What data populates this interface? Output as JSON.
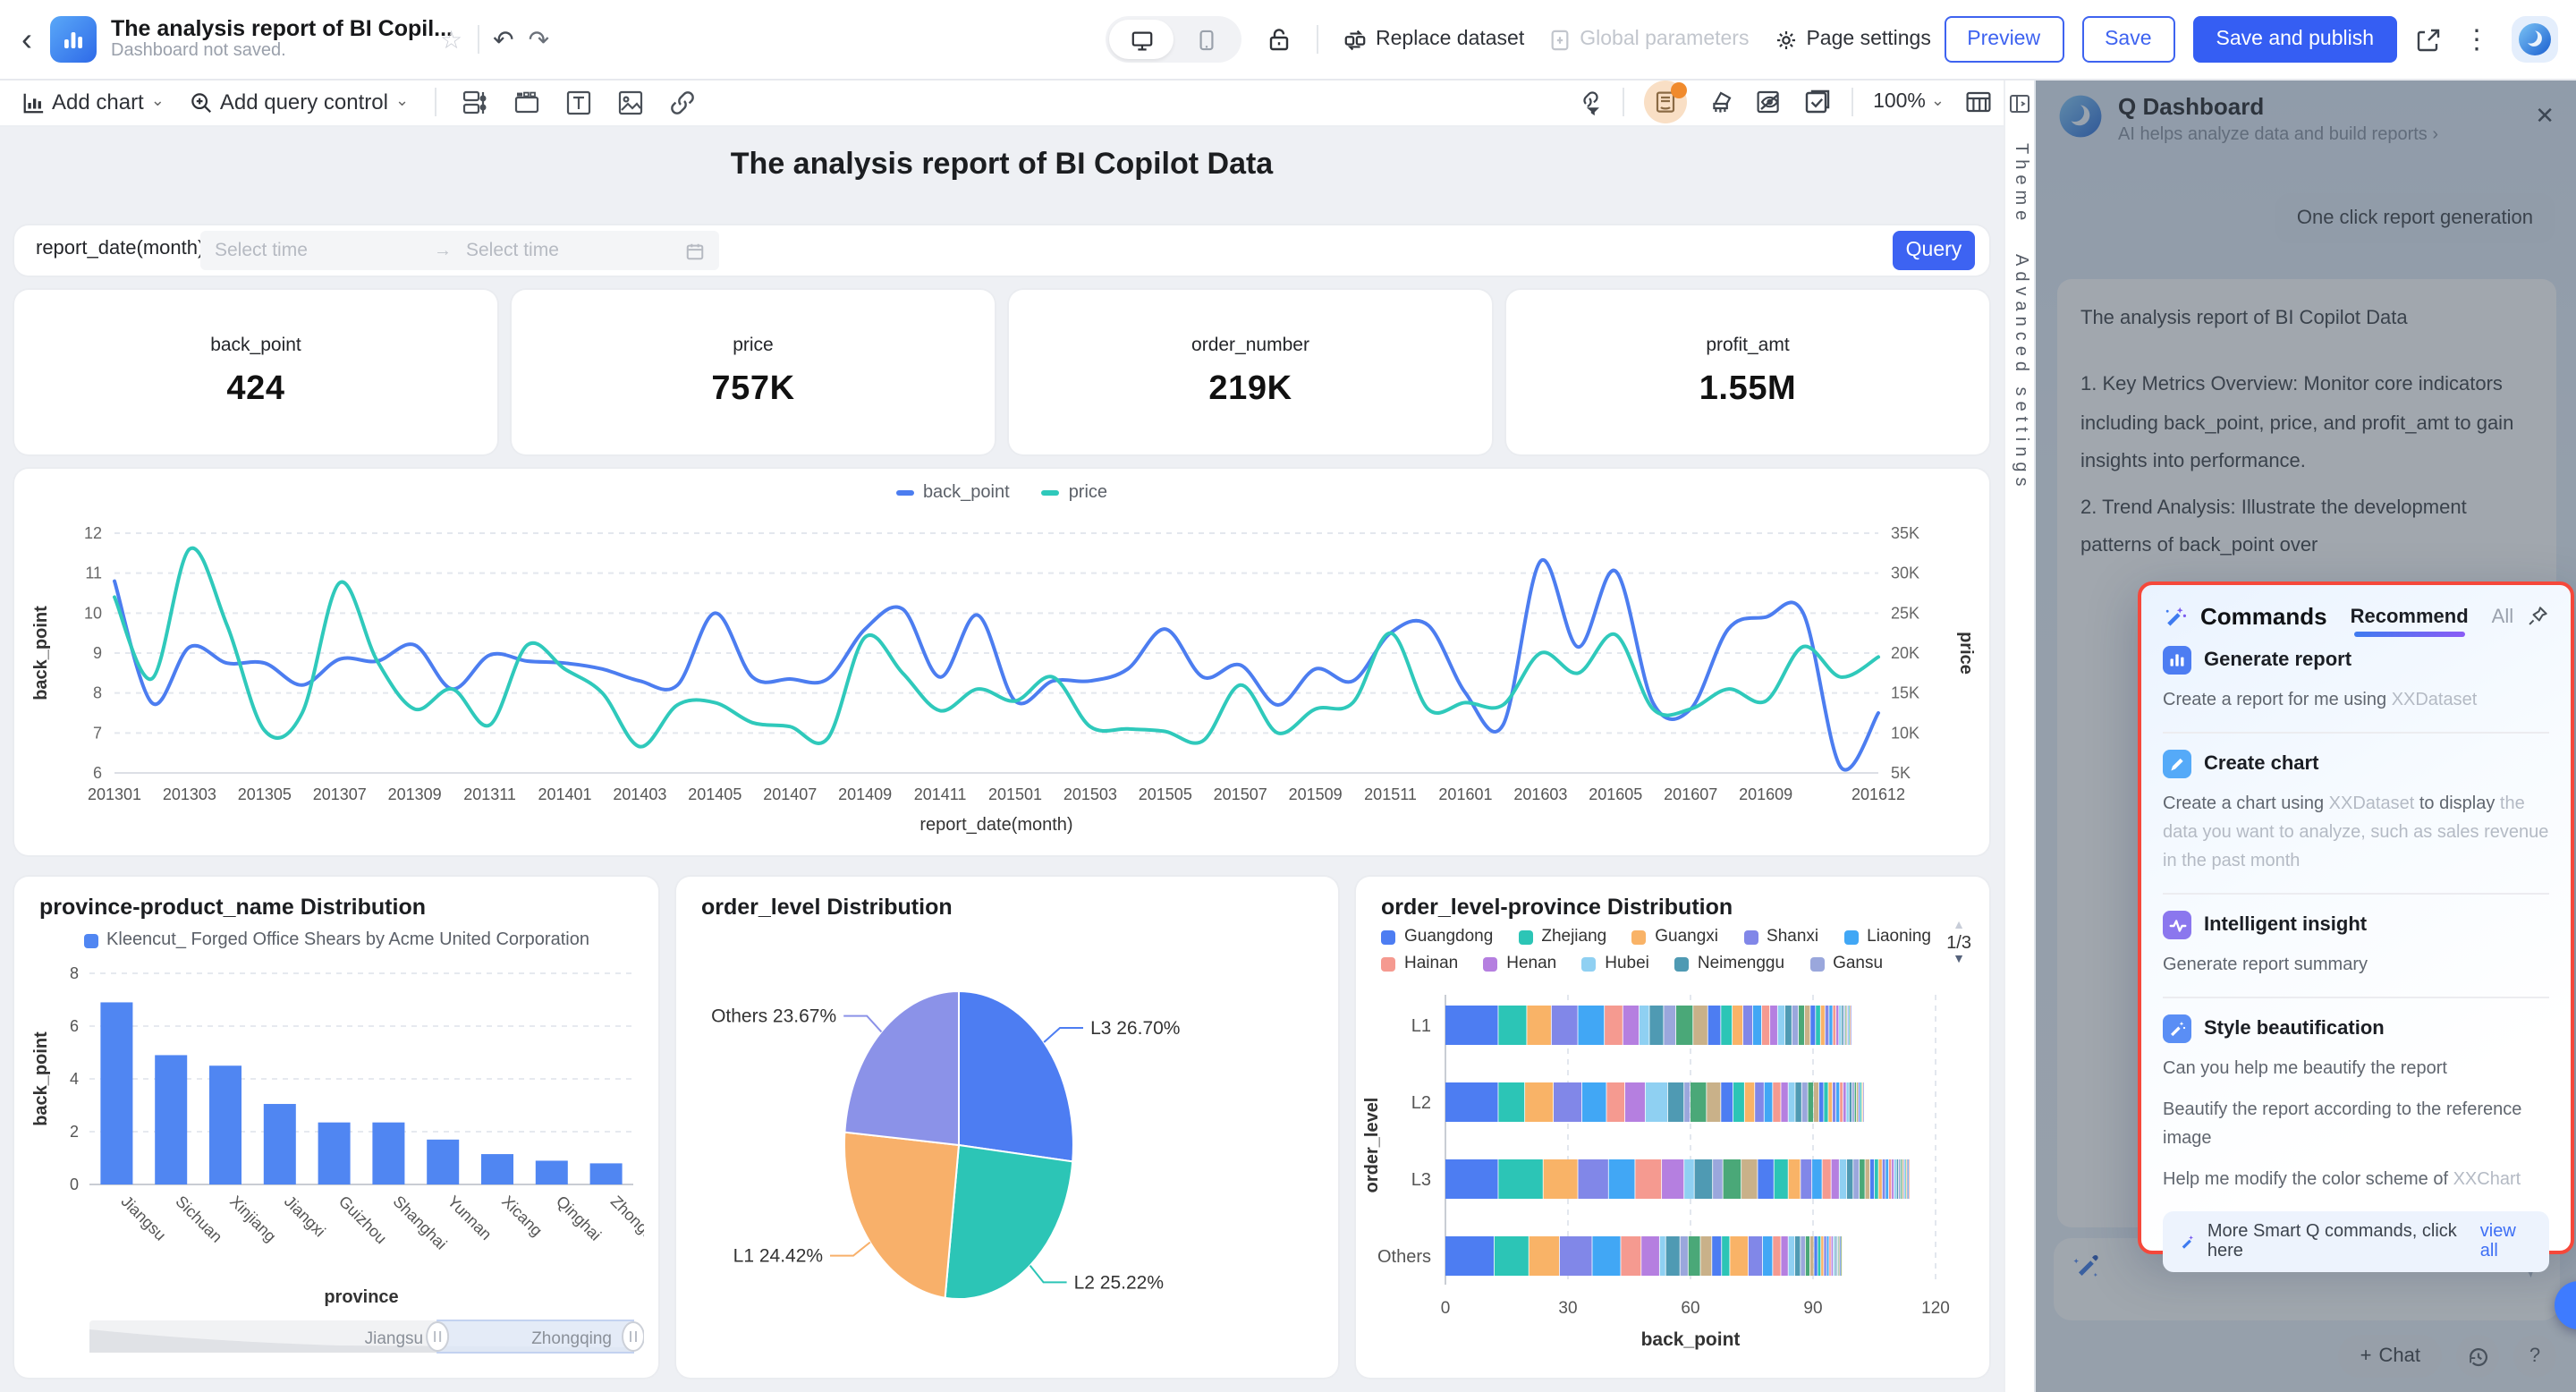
{
  "icons": {
    "back": "‹",
    "star": "☆",
    "undo": "↶",
    "redo": "↷",
    "kebab": "⋮",
    "close": "✕",
    "caret": "⌄",
    "range_arrow": "→",
    "plus": "+",
    "question": "?",
    "tri_up": "▲",
    "tri_down": "▼",
    "chevron_right": "›"
  },
  "top_bar": {
    "doc_title": "The analysis report of BI Copil...",
    "doc_subtitle": "Dashboard not saved.",
    "replace_dataset": "Replace dataset",
    "global_parameters": "Global parameters",
    "page_settings": "Page settings",
    "preview": "Preview",
    "save": "Save",
    "save_and_publish": "Save and publish"
  },
  "toolbar": {
    "add_chart": "Add chart",
    "add_query_control": "Add query control",
    "zoom_level": "100%"
  },
  "side_strip": {
    "theme": "Theme",
    "advanced_settings": "Advanced settings"
  },
  "dashboard": {
    "title": "The analysis report of BI Copilot Data",
    "query": {
      "field_label": "report_date(month)",
      "start_placeholder": "Select time",
      "end_placeholder": "Select time",
      "button": "Query"
    },
    "kpis": [
      {
        "label": "back_point",
        "value": "424"
      },
      {
        "label": "price",
        "value": "757K"
      },
      {
        "label": "order_number",
        "value": "219K"
      },
      {
        "label": "profit_amt",
        "value": "1.55M"
      }
    ]
  },
  "chart_data": [
    {
      "type": "line",
      "xlabel": "report_date(month)",
      "x": [
        "201301",
        "201302",
        "201303",
        "201304",
        "201305",
        "201306",
        "201307",
        "201308",
        "201309",
        "201310",
        "201311",
        "201312",
        "201401",
        "201402",
        "201403",
        "201404",
        "201405",
        "201406",
        "201407",
        "201408",
        "201409",
        "201410",
        "201411",
        "201412",
        "201501",
        "201502",
        "201503",
        "201504",
        "201505",
        "201506",
        "201507",
        "201508",
        "201509",
        "201510",
        "201511",
        "201512",
        "201601",
        "201602",
        "201603",
        "201604",
        "201605",
        "201606",
        "201607",
        "201608",
        "201609",
        "201610",
        "201611",
        "201612"
      ],
      "x_ticks": [
        "201301",
        "201303",
        "201305",
        "201307",
        "201309",
        "201311",
        "201401",
        "201403",
        "201405",
        "201407",
        "201409",
        "201411",
        "201501",
        "201503",
        "201505",
        "201507",
        "201509",
        "201511",
        "201601",
        "201603",
        "201605",
        "201607",
        "201609",
        "201612"
      ],
      "left_axis": {
        "label": "back_point",
        "min": 6,
        "max": 12,
        "ticks": [
          12,
          11,
          10,
          9,
          8,
          7,
          6
        ]
      },
      "right_axis": {
        "label": "price",
        "min": 5,
        "max": 35,
        "tick_labels": [
          "35K",
          "30K",
          "25K",
          "20K",
          "15K",
          "10K",
          "5K"
        ]
      },
      "series": [
        {
          "name": "back_point",
          "axis": "left",
          "color": "#4c7df0",
          "values": [
            10.8,
            7.75,
            9.15,
            8.75,
            8.75,
            8.2,
            8.85,
            8.8,
            9.2,
            8.1,
            8.95,
            8.8,
            8.75,
            8.6,
            8.3,
            8.2,
            10.0,
            8.4,
            8.35,
            8.35,
            9.6,
            10.1,
            8.4,
            9.95,
            7.8,
            8.3,
            8.3,
            8.6,
            9.6,
            8.4,
            8.7,
            7.7,
            8.6,
            8.3,
            9.5,
            9.7,
            8.0,
            7.2,
            11.3,
            9.15,
            11.05,
            7.75,
            7.6,
            9.6,
            9.9,
            10.0,
            6.15,
            7.5
          ]
        },
        {
          "name": "price",
          "axis": "right",
          "color": "#2fc9bb",
          "unit": "K",
          "values": [
            27,
            16.8,
            33,
            23.5,
            10.3,
            12.5,
            28.8,
            19,
            13,
            15.5,
            11,
            21,
            18,
            15,
            8.3,
            13.5,
            13.8,
            11.3,
            10.8,
            9.3,
            22,
            17.5,
            12.8,
            15.5,
            14,
            17,
            10.8,
            10.5,
            10.2,
            9,
            16,
            10,
            13,
            13.8,
            22.5,
            13,
            13.8,
            13.5,
            20,
            17.5,
            22.3,
            13,
            13,
            15.5,
            14,
            20.8,
            17,
            19.5
          ]
        }
      ]
    },
    {
      "type": "bar",
      "title": "province-product_name Distribution",
      "legend": "Kleencut_ Forged Office Shears by Acme United Corporation",
      "color": "#5086f2",
      "categories": [
        "Jiangsu",
        "Sichuan",
        "Xinjiang",
        "Jiangxi",
        "Guizhou",
        "Shanghai",
        "Yunnan",
        "Xicang",
        "Qinghai",
        "Zhongqing"
      ],
      "values": [
        6.9,
        4.9,
        4.5,
        3.05,
        2.35,
        2.35,
        1.7,
        1.15,
        0.9,
        0.8
      ],
      "ylabel": "back_point",
      "xlabel": "province",
      "ylim": [
        0,
        8
      ],
      "yticks": [
        8,
        6,
        4,
        2,
        0
      ],
      "datazoom": {
        "start_label": "Jiangsu",
        "end_label": "Zhongqing",
        "window_start_pct": 64
      }
    },
    {
      "type": "pie",
      "title": "order_level Distribution",
      "slices": [
        {
          "label": "L3",
          "pct": 26.7,
          "display": "L3 26.70%",
          "color": "#4d7df2"
        },
        {
          "label": "L2",
          "pct": 25.22,
          "display": "L2 25.22%",
          "color": "#2cc5b6"
        },
        {
          "label": "L1",
          "pct": 24.42,
          "display": "L1 24.42%",
          "color": "#f8b06a"
        },
        {
          "label": "Others",
          "pct": 23.67,
          "display": "Others 23.67%",
          "color": "#8b92e8"
        }
      ]
    },
    {
      "type": "stacked_bar_h",
      "title": "order_level-province Distribution",
      "pagination": "1/3",
      "legend": [
        {
          "name": "Guangdong",
          "color": "#4d7df2"
        },
        {
          "name": "Zhejiang",
          "color": "#2cc5b6"
        },
        {
          "name": "Guangxi",
          "color": "#f9b367"
        },
        {
          "name": "Shanxi",
          "color": "#8187e8"
        },
        {
          "name": "Liaoning",
          "color": "#41a7f5"
        },
        {
          "name": "Hainan",
          "color": "#f59a90"
        },
        {
          "name": "Henan",
          "color": "#b57fe0"
        },
        {
          "name": "Hubei",
          "color": "#8fd0f2"
        },
        {
          "name": "Neimenggu",
          "color": "#4f9ab3"
        },
        {
          "name": "Gansu",
          "color": "#9aa7dc"
        }
      ],
      "extra_palette": [
        "#4aa878",
        "#c9b189",
        "#4d7df2",
        "#2cc5b6",
        "#f9b367",
        "#8187e8",
        "#41a7f5",
        "#f59a90",
        "#b57fe0",
        "#8fd0f2",
        "#4f9ab3",
        "#9aa7dc"
      ],
      "categories": [
        "L1",
        "L2",
        "L3",
        "Others"
      ],
      "ylabel": "order_level",
      "xlabel": "back_point",
      "xlim": [
        0,
        120
      ],
      "xticks": [
        0,
        30,
        60,
        90,
        120
      ],
      "rows": [
        {
          "category": "L1",
          "segments": [
            13,
            7,
            6,
            6.5,
            6.5,
            4.5,
            4,
            2.5,
            3.5,
            3
          ],
          "extra": [
            4.2,
            3.6,
            3.2,
            2.8,
            2.6,
            2.4,
            2.2,
            2.0,
            1.9,
            1.8,
            1.7,
            1.6,
            1.5,
            1.4,
            1.3,
            1.2,
            1.1,
            1.0,
            0.9,
            0.8,
            0.7,
            0.6,
            0.5,
            0.4,
            0.3,
            0.3,
            0.3,
            0.2,
            0.2,
            0.1
          ]
        },
        {
          "category": "L2",
          "segments": [
            13,
            6.5,
            7,
            7,
            6,
            4.5,
            5,
            5.5,
            4,
            1.5
          ],
          "extra": [
            4,
            3.5,
            3,
            2.8,
            2.5,
            2.3,
            2.1,
            2,
            1.8,
            1.7,
            1.6,
            1.5,
            1.4,
            1.3,
            1.2,
            1.1,
            1,
            0.9,
            0.9,
            0.8,
            0.8,
            0.7,
            0.7,
            0.6,
            0.5,
            0.5,
            0.4,
            0.4,
            0.3,
            0.2
          ]
        },
        {
          "category": "L3",
          "segments": [
            13,
            11,
            8.5,
            7.5,
            6.5,
            6.5,
            5.5,
            2.5,
            4.5,
            2.5
          ],
          "extra": [
            4.5,
            4,
            4,
            3.5,
            3,
            2.8,
            2.5,
            2.2,
            2,
            1.8,
            1.6,
            1.5,
            1.4,
            1.2,
            1.1,
            1,
            0.9,
            0.8,
            0.8,
            0.7,
            0.6,
            0.6,
            0.5,
            0.5,
            0.4,
            0.4,
            0.3,
            0.3,
            0.2,
            0.2,
            0.2,
            0.1
          ]
        },
        {
          "category": "Others",
          "segments": [
            12,
            8.5,
            7.5,
            8,
            7,
            5,
            4.5,
            1.5,
            3.5,
            2
          ],
          "extra": [
            3,
            2.8,
            2.4,
            2,
            4.5,
            3.5,
            2.5,
            2,
            1.8,
            1.6,
            1.4,
            1.2,
            1.1,
            1,
            0.9,
            0.8,
            0.7,
            0.7,
            0.6,
            0.5,
            0.5,
            0.4,
            0.4,
            0.3,
            0.3,
            0.2,
            0.2,
            0.1,
            0.1
          ]
        }
      ]
    }
  ],
  "assistant": {
    "name": "Q Dashboard",
    "tagline": "AI helps analyze data and build reports",
    "user_message": "One click report generation",
    "ai_message_title": "The analysis report of BI Copilot Data",
    "ai_message_lines": [
      "1. Key Metrics Overview: Monitor core indicators including back_point, price, and profit_amt to gain insights into performance.",
      "2. Trend Analysis: Illustrate the development patterns of back_point over"
    ],
    "commands": {
      "title": "Commands",
      "tabs": [
        "Recommend",
        "All"
      ],
      "active_tab": "Recommend",
      "items": [
        {
          "icon": "generate-report-icon",
          "icon_bg": "#4d7df2",
          "title": "Generate report",
          "lines": [
            [
              {
                "t": "Create a report for me using "
              },
              {
                "t": "XXDataset",
                "muted": true
              }
            ]
          ]
        },
        {
          "icon": "create-chart-icon",
          "icon_bg": "#55aaf8",
          "title": "Create chart",
          "lines": [
            [
              {
                "t": "Create a chart using "
              },
              {
                "t": "XXDataset",
                "muted": true
              },
              {
                "t": " to display "
              },
              {
                "t": "the data you want to analyze, such as sales revenue in the past month",
                "muted": true
              }
            ]
          ]
        },
        {
          "icon": "intelligent-insight-icon",
          "icon_bg": "#8b77ee",
          "title": "Intelligent insight",
          "lines": [
            [
              {
                "t": "Generate report summary"
              }
            ]
          ]
        },
        {
          "icon": "style-beautification-icon",
          "icon_bg": "#5a8ef5",
          "title": "Style beautification",
          "lines": [
            [
              {
                "t": "Can you help me beautify the report"
              }
            ],
            [
              {
                "t": "Beautify the report according to the reference image"
              }
            ],
            [
              {
                "t": "Help me modify the color scheme of "
              },
              {
                "t": "XXChart",
                "muted": true
              }
            ]
          ]
        }
      ],
      "more_text": "More Smart Q commands, click here",
      "view_all": "view all"
    },
    "footer": {
      "chat": "Chat"
    }
  }
}
